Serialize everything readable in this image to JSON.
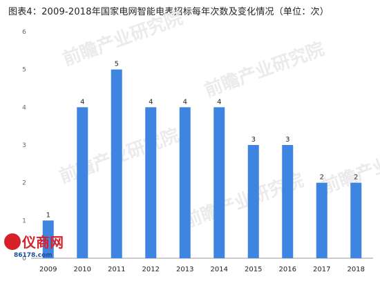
{
  "title": "图表4：2009-2018年国家电网智能电表招标每年次数及变化情况（单位：次）",
  "watermark_text": "前瞻产业研究院",
  "logo": {
    "name": "仪商网",
    "url": "86178.com"
  },
  "colors": {
    "bar": "#3d85e0",
    "axis": "#999999"
  },
  "chart_data": {
    "type": "bar",
    "title": "图表4：2009-2018年国家电网智能电表招标每年次数及变化情况（单位：次）",
    "categories": [
      "2009",
      "2010",
      "2011",
      "2012",
      "2013",
      "2014",
      "2015",
      "2016",
      "2017",
      "2018"
    ],
    "values": [
      1,
      4,
      5,
      4,
      4,
      4,
      3,
      3,
      2,
      2
    ],
    "yticks": [
      0,
      1,
      2,
      3,
      4,
      5,
      6
    ],
    "ylim": [
      0,
      6
    ],
    "xlabel": "",
    "ylabel": "",
    "grid": false,
    "data_labels": true
  }
}
